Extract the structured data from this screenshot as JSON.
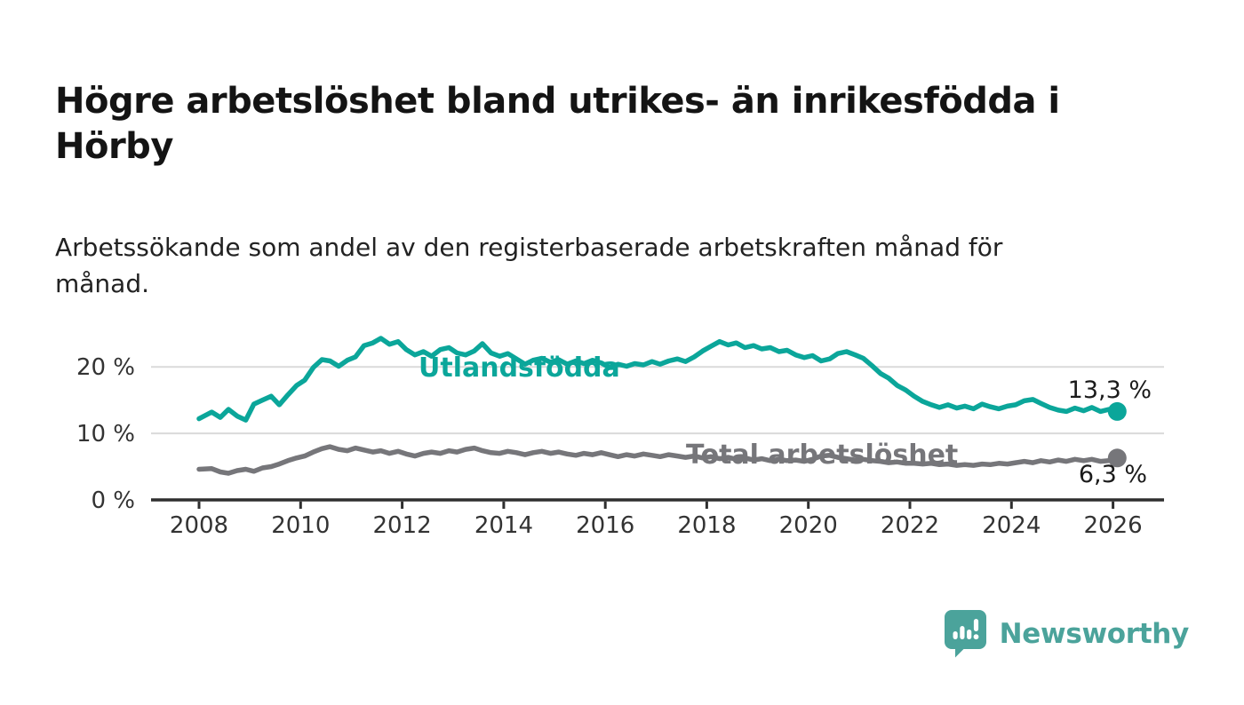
{
  "header": {
    "title": "Högre arbetslöshet bland utrikes- än inrikesfödda i Hörby",
    "subtitle": "Arbetssökande som andel av den registerbaserade arbetskraften månad för månad."
  },
  "chart_data": {
    "type": "line",
    "x_ticks": [
      2008,
      2010,
      2012,
      2014,
      2016,
      2018,
      2020,
      2022,
      2024,
      2026
    ],
    "x_tick_labels": [
      "2008",
      "2010",
      "2012",
      "2014",
      "2016",
      "2018",
      "2020",
      "2022",
      "2024",
      "2026"
    ],
    "y_ticks": [
      0,
      10,
      20
    ],
    "y_tick_labels": [
      "0 %",
      "10 %",
      "20 %"
    ],
    "ylim": [
      0,
      26
    ],
    "xlim": [
      2007.1,
      2027
    ],
    "grid": "horizontal",
    "colors": {
      "grid": "#dadada",
      "axis": "#2f2f2f",
      "tick_text": "#333333"
    },
    "series": [
      {
        "name": "Utlandsfödda",
        "color": "#0ba69a",
        "end_label": "13,3 %",
        "end_value": 13.3,
        "points": [
          [
            2008.0,
            12.2
          ],
          [
            2008.25,
            13.2
          ],
          [
            2008.42,
            12.4
          ],
          [
            2008.58,
            13.6
          ],
          [
            2008.75,
            12.6
          ],
          [
            2008.92,
            12.0
          ],
          [
            2009.08,
            14.4
          ],
          [
            2009.25,
            15.0
          ],
          [
            2009.42,
            15.6
          ],
          [
            2009.58,
            14.3
          ],
          [
            2009.75,
            15.8
          ],
          [
            2009.92,
            17.2
          ],
          [
            2010.08,
            18.0
          ],
          [
            2010.25,
            19.9
          ],
          [
            2010.42,
            21.1
          ],
          [
            2010.58,
            20.9
          ],
          [
            2010.75,
            20.1
          ],
          [
            2010.92,
            21.0
          ],
          [
            2011.08,
            21.5
          ],
          [
            2011.25,
            23.2
          ],
          [
            2011.42,
            23.6
          ],
          [
            2011.58,
            24.3
          ],
          [
            2011.75,
            23.4
          ],
          [
            2011.92,
            23.8
          ],
          [
            2012.08,
            22.6
          ],
          [
            2012.25,
            21.8
          ],
          [
            2012.42,
            22.3
          ],
          [
            2012.58,
            21.6
          ],
          [
            2012.75,
            22.6
          ],
          [
            2012.92,
            22.9
          ],
          [
            2013.08,
            22.1
          ],
          [
            2013.25,
            21.8
          ],
          [
            2013.42,
            22.4
          ],
          [
            2013.58,
            23.5
          ],
          [
            2013.75,
            22.1
          ],
          [
            2013.92,
            21.6
          ],
          [
            2014.08,
            22.0
          ],
          [
            2014.25,
            21.2
          ],
          [
            2014.42,
            20.4
          ],
          [
            2014.58,
            21.0
          ],
          [
            2014.75,
            21.3
          ],
          [
            2014.92,
            20.7
          ],
          [
            2015.08,
            21.1
          ],
          [
            2015.25,
            20.4
          ],
          [
            2015.42,
            20.9
          ],
          [
            2015.58,
            20.5
          ],
          [
            2015.75,
            21.0
          ],
          [
            2015.92,
            20.6
          ],
          [
            2016.08,
            19.9
          ],
          [
            2016.25,
            20.4
          ],
          [
            2016.42,
            20.1
          ],
          [
            2016.58,
            20.5
          ],
          [
            2016.75,
            20.3
          ],
          [
            2016.92,
            20.8
          ],
          [
            2017.08,
            20.4
          ],
          [
            2017.25,
            20.9
          ],
          [
            2017.42,
            21.2
          ],
          [
            2017.58,
            20.8
          ],
          [
            2017.75,
            21.5
          ],
          [
            2017.92,
            22.4
          ],
          [
            2018.08,
            23.1
          ],
          [
            2018.25,
            23.8
          ],
          [
            2018.42,
            23.3
          ],
          [
            2018.58,
            23.6
          ],
          [
            2018.75,
            22.9
          ],
          [
            2018.92,
            23.2
          ],
          [
            2019.08,
            22.7
          ],
          [
            2019.25,
            22.9
          ],
          [
            2019.42,
            22.3
          ],
          [
            2019.58,
            22.5
          ],
          [
            2019.75,
            21.8
          ],
          [
            2019.92,
            21.4
          ],
          [
            2020.08,
            21.7
          ],
          [
            2020.25,
            20.9
          ],
          [
            2020.42,
            21.2
          ],
          [
            2020.58,
            22.0
          ],
          [
            2020.75,
            22.3
          ],
          [
            2020.92,
            21.8
          ],
          [
            2021.08,
            21.3
          ],
          [
            2021.25,
            20.2
          ],
          [
            2021.42,
            19.0
          ],
          [
            2021.58,
            18.3
          ],
          [
            2021.75,
            17.2
          ],
          [
            2021.92,
            16.5
          ],
          [
            2022.08,
            15.6
          ],
          [
            2022.25,
            14.8
          ],
          [
            2022.42,
            14.3
          ],
          [
            2022.58,
            13.9
          ],
          [
            2022.75,
            14.3
          ],
          [
            2022.92,
            13.8
          ],
          [
            2023.08,
            14.1
          ],
          [
            2023.25,
            13.7
          ],
          [
            2023.42,
            14.4
          ],
          [
            2023.58,
            14.0
          ],
          [
            2023.75,
            13.7
          ],
          [
            2023.92,
            14.1
          ],
          [
            2024.08,
            14.3
          ],
          [
            2024.25,
            14.9
          ],
          [
            2024.42,
            15.1
          ],
          [
            2024.58,
            14.5
          ],
          [
            2024.75,
            13.9
          ],
          [
            2024.92,
            13.5
          ],
          [
            2025.08,
            13.3
          ],
          [
            2025.25,
            13.8
          ],
          [
            2025.42,
            13.4
          ],
          [
            2025.58,
            13.9
          ],
          [
            2025.75,
            13.3
          ],
          [
            2025.92,
            13.6
          ],
          [
            2026.08,
            13.3
          ]
        ]
      },
      {
        "name": "Total arbetslöshet",
        "color": "#76767a",
        "end_label": "6,3 %",
        "end_value": 6.3,
        "points": [
          [
            2008.0,
            4.6
          ],
          [
            2008.25,
            4.7
          ],
          [
            2008.42,
            4.2
          ],
          [
            2008.58,
            4.0
          ],
          [
            2008.75,
            4.4
          ],
          [
            2008.92,
            4.6
          ],
          [
            2009.08,
            4.3
          ],
          [
            2009.25,
            4.8
          ],
          [
            2009.42,
            5.0
          ],
          [
            2009.58,
            5.4
          ],
          [
            2009.75,
            5.9
          ],
          [
            2009.92,
            6.3
          ],
          [
            2010.08,
            6.6
          ],
          [
            2010.25,
            7.2
          ],
          [
            2010.42,
            7.7
          ],
          [
            2010.58,
            8.0
          ],
          [
            2010.75,
            7.6
          ],
          [
            2010.92,
            7.4
          ],
          [
            2011.08,
            7.8
          ],
          [
            2011.25,
            7.5
          ],
          [
            2011.42,
            7.2
          ],
          [
            2011.58,
            7.4
          ],
          [
            2011.75,
            7.0
          ],
          [
            2011.92,
            7.3
          ],
          [
            2012.08,
            6.9
          ],
          [
            2012.25,
            6.6
          ],
          [
            2012.42,
            7.0
          ],
          [
            2012.58,
            7.2
          ],
          [
            2012.75,
            7.0
          ],
          [
            2012.92,
            7.4
          ],
          [
            2013.08,
            7.2
          ],
          [
            2013.25,
            7.6
          ],
          [
            2013.42,
            7.8
          ],
          [
            2013.58,
            7.4
          ],
          [
            2013.75,
            7.1
          ],
          [
            2013.92,
            7.0
          ],
          [
            2014.08,
            7.3
          ],
          [
            2014.25,
            7.1
          ],
          [
            2014.42,
            6.8
          ],
          [
            2014.58,
            7.1
          ],
          [
            2014.75,
            7.3
          ],
          [
            2014.92,
            7.0
          ],
          [
            2015.08,
            7.2
          ],
          [
            2015.25,
            6.9
          ],
          [
            2015.42,
            6.7
          ],
          [
            2015.58,
            7.0
          ],
          [
            2015.75,
            6.8
          ],
          [
            2015.92,
            7.1
          ],
          [
            2016.08,
            6.8
          ],
          [
            2016.25,
            6.5
          ],
          [
            2016.42,
            6.8
          ],
          [
            2016.58,
            6.6
          ],
          [
            2016.75,
            6.9
          ],
          [
            2016.92,
            6.7
          ],
          [
            2017.08,
            6.5
          ],
          [
            2017.25,
            6.8
          ],
          [
            2017.42,
            6.6
          ],
          [
            2017.58,
            6.4
          ],
          [
            2017.75,
            6.6
          ],
          [
            2017.92,
            6.3
          ],
          [
            2018.08,
            6.5
          ],
          [
            2018.25,
            6.2
          ],
          [
            2018.42,
            6.4
          ],
          [
            2018.58,
            6.1
          ],
          [
            2018.75,
            6.3
          ],
          [
            2018.92,
            6.0
          ],
          [
            2019.08,
            6.2
          ],
          [
            2019.25,
            5.9
          ],
          [
            2019.42,
            6.1
          ],
          [
            2019.58,
            5.9
          ],
          [
            2019.75,
            6.0
          ],
          [
            2019.92,
            5.8
          ],
          [
            2020.08,
            6.1
          ],
          [
            2020.25,
            6.6
          ],
          [
            2020.42,
            6.7
          ],
          [
            2020.58,
            6.4
          ],
          [
            2020.75,
            6.2
          ],
          [
            2020.92,
            6.0
          ],
          [
            2021.08,
            6.1
          ],
          [
            2021.25,
            5.9
          ],
          [
            2021.42,
            5.8
          ],
          [
            2021.58,
            5.6
          ],
          [
            2021.75,
            5.7
          ],
          [
            2021.92,
            5.5
          ],
          [
            2022.08,
            5.5
          ],
          [
            2022.25,
            5.4
          ],
          [
            2022.42,
            5.5
          ],
          [
            2022.58,
            5.3
          ],
          [
            2022.75,
            5.4
          ],
          [
            2022.92,
            5.2
          ],
          [
            2023.08,
            5.3
          ],
          [
            2023.25,
            5.2
          ],
          [
            2023.42,
            5.4
          ],
          [
            2023.58,
            5.3
          ],
          [
            2023.75,
            5.5
          ],
          [
            2023.92,
            5.4
          ],
          [
            2024.08,
            5.6
          ],
          [
            2024.25,
            5.8
          ],
          [
            2024.42,
            5.6
          ],
          [
            2024.58,
            5.9
          ],
          [
            2024.75,
            5.7
          ],
          [
            2024.92,
            6.0
          ],
          [
            2025.08,
            5.8
          ],
          [
            2025.25,
            6.1
          ],
          [
            2025.42,
            5.9
          ],
          [
            2025.58,
            6.1
          ],
          [
            2025.75,
            5.8
          ],
          [
            2025.92,
            5.9
          ],
          [
            2026.08,
            6.3
          ]
        ]
      }
    ]
  },
  "footer": {
    "brand": "Newsworthy",
    "brand_color": "#4ba39b"
  }
}
